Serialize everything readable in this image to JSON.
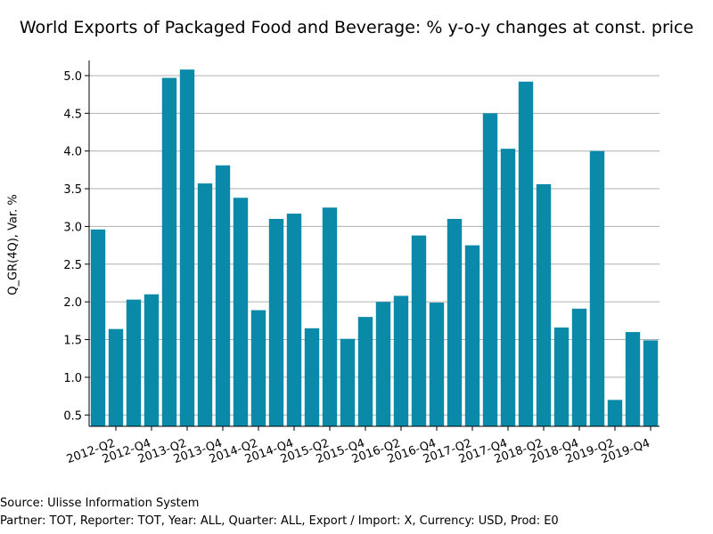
{
  "chart_data": {
    "type": "bar",
    "title": "World Exports of Packaged Food and Beverage: % y-o-y changes at const. price",
    "xlabel": "",
    "ylabel": "Q_GR(4Q), Var. %",
    "ylim": [
      0.35,
      5.2
    ],
    "yticks": [
      0.5,
      1.0,
      1.5,
      2.0,
      2.5,
      3.0,
      3.5,
      4.0,
      4.5,
      5.0
    ],
    "ytick_labels": [
      "0.5",
      "1.0",
      "1.5",
      "2.0",
      "2.5",
      "3.0",
      "3.5",
      "4.0",
      "4.5",
      "5.0"
    ],
    "grid": true,
    "bar_color": "#0a8aa8",
    "categories": [
      "2012-Q1",
      "2012-Q2",
      "2012-Q3",
      "2012-Q4",
      "2013-Q1",
      "2013-Q2",
      "2013-Q3",
      "2013-Q4",
      "2014-Q1",
      "2014-Q2",
      "2014-Q3",
      "2014-Q4",
      "2015-Q1",
      "2015-Q2",
      "2015-Q3",
      "2015-Q4",
      "2016-Q1",
      "2016-Q2",
      "2016-Q3",
      "2016-Q4",
      "2017-Q1",
      "2017-Q2",
      "2017-Q3",
      "2017-Q4",
      "2018-Q1",
      "2018-Q2",
      "2018-Q3",
      "2018-Q4",
      "2019-Q1",
      "2019-Q2",
      "2019-Q3",
      "2019-Q4"
    ],
    "xtick_labels": [
      "2012-Q2",
      "2012-Q4",
      "2013-Q2",
      "2013-Q4",
      "2014-Q2",
      "2014-Q4",
      "2015-Q2",
      "2015-Q4",
      "2016-Q2",
      "2016-Q4",
      "2017-Q2",
      "2017-Q4",
      "2018-Q2",
      "2018-Q4",
      "2019-Q2",
      "2019-Q4"
    ],
    "values": [
      2.96,
      1.64,
      2.03,
      2.1,
      4.97,
      5.08,
      3.57,
      3.81,
      3.38,
      1.89,
      3.1,
      3.17,
      1.65,
      3.25,
      1.51,
      1.8,
      2.0,
      2.08,
      2.88,
      1.99,
      3.1,
      2.75,
      4.5,
      4.03,
      4.92,
      3.56,
      1.66,
      1.91,
      4.0,
      0.7,
      1.6,
      1.49
    ]
  },
  "footer": {
    "source": "Source: Ulisse Information System",
    "details": "Partner: TOT, Reporter: TOT, Year: ALL, Quarter: ALL, Export / Import: X, Currency: USD, Prod: E0"
  }
}
